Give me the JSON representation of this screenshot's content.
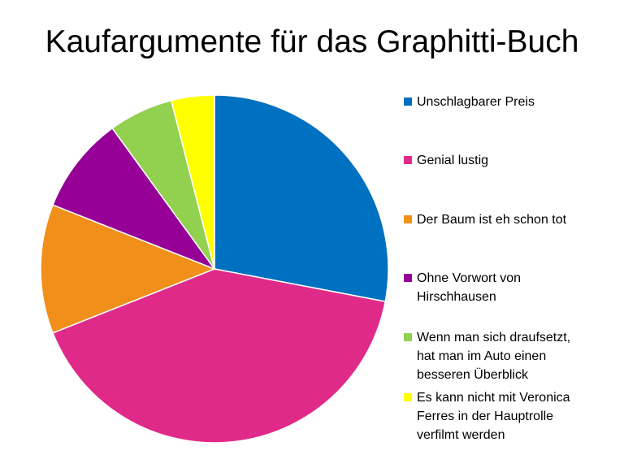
{
  "chart_data": {
    "type": "pie",
    "title": "Kaufargumente für das Graphitti-Buch",
    "legend_position": "right",
    "slices": [
      {
        "label": "Unschlagbarer Preis",
        "value": 28,
        "color": "#0070C0"
      },
      {
        "label": "Genial lustig",
        "value": 41,
        "color": "#E02A8A"
      },
      {
        "label": "Der Baum ist eh schon tot",
        "value": 12,
        "color": "#F0901A"
      },
      {
        "label": "Ohne Vorwort von\nHirschhausen",
        "value": 9,
        "color": "#960096"
      },
      {
        "label": "Wenn man sich draufsetzt,\nhat man im Auto einen\nbesseren Überblick",
        "value": 6,
        "color": "#92D050"
      },
      {
        "label": "Es kann nicht mit Veronica\nFerres in der Hauptrolle\nverfilmt werden",
        "value": 4,
        "color": "#FFFF00"
      }
    ]
  }
}
